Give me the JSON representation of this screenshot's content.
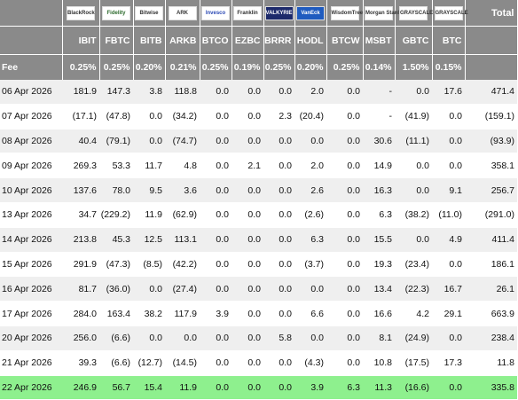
{
  "logos": [
    {
      "name": "blackrock",
      "text": "BlackRock"
    },
    {
      "name": "fidelity",
      "text": "Fidelity"
    },
    {
      "name": "bitwise",
      "text": "Bitwise"
    },
    {
      "name": "ark",
      "text": "ARK"
    },
    {
      "name": "invesco",
      "text": "Invesco"
    },
    {
      "name": "franklin",
      "text": "Franklin"
    },
    {
      "name": "valkyrie",
      "text": "VALKYRIE"
    },
    {
      "name": "vaneck",
      "text": "VanEck"
    },
    {
      "name": "wisdomtree",
      "text": "WisdomTree"
    },
    {
      "name": "morgan-stanley",
      "text": "Morgan Stanley"
    },
    {
      "name": "grayscale",
      "text": "GRAYSCALE"
    },
    {
      "name": "grayscale-mini",
      "text": "GRAYSCALE"
    }
  ],
  "total_header": "Total",
  "tickers": [
    "IBIT",
    "FBTC",
    "BITB",
    "ARKB",
    "BTCO",
    "EZBC",
    "BRRR",
    "HODL",
    "BTCW",
    "MSBT",
    "GBTC",
    "BTC"
  ],
  "fee_label": "Fee",
  "fees": [
    "0.25%",
    "0.25%",
    "0.20%",
    "0.21%",
    "0.25%",
    "0.19%",
    "0.25%",
    "0.20%",
    "0.25%",
    "0.14%",
    "1.50%",
    "0.15%"
  ],
  "rows": [
    {
      "date": "06 Apr 2026",
      "values": [
        "181.9",
        "147.3",
        "3.8",
        "118.8",
        "0.0",
        "0.0",
        "0.0",
        "2.0",
        "0.0",
        "-",
        "0.0",
        "17.6",
        "471.4"
      ]
    },
    {
      "date": "07 Apr 2026",
      "values": [
        "(17.1)",
        "(47.8)",
        "0.0",
        "(34.2)",
        "0.0",
        "0.0",
        "2.3",
        "(20.4)",
        "0.0",
        "-",
        "(41.9)",
        "0.0",
        "(159.1)"
      ]
    },
    {
      "date": "08 Apr 2026",
      "values": [
        "40.4",
        "(79.1)",
        "0.0",
        "(74.7)",
        "0.0",
        "0.0",
        "0.0",
        "0.0",
        "0.0",
        "30.6",
        "(11.1)",
        "0.0",
        "(93.9)"
      ]
    },
    {
      "date": "09 Apr 2026",
      "values": [
        "269.3",
        "53.3",
        "11.7",
        "4.8",
        "0.0",
        "2.1",
        "0.0",
        "2.0",
        "0.0",
        "14.9",
        "0.0",
        "0.0",
        "358.1"
      ]
    },
    {
      "date": "10 Apr 2026",
      "values": [
        "137.6",
        "78.0",
        "9.5",
        "3.6",
        "0.0",
        "0.0",
        "0.0",
        "2.6",
        "0.0",
        "16.3",
        "0.0",
        "9.1",
        "256.7"
      ]
    },
    {
      "date": "13 Apr 2026",
      "values": [
        "34.7",
        "(229.2)",
        "11.9",
        "(62.9)",
        "0.0",
        "0.0",
        "0.0",
        "(2.6)",
        "0.0",
        "6.3",
        "(38.2)",
        "(11.0)",
        "(291.0)"
      ]
    },
    {
      "date": "14 Apr 2026",
      "values": [
        "213.8",
        "45.3",
        "12.5",
        "113.1",
        "0.0",
        "0.0",
        "0.0",
        "6.3",
        "0.0",
        "15.5",
        "0.0",
        "4.9",
        "411.4"
      ]
    },
    {
      "date": "15 Apr 2026",
      "values": [
        "291.9",
        "(47.3)",
        "(8.5)",
        "(42.2)",
        "0.0",
        "0.0",
        "0.0",
        "(3.7)",
        "0.0",
        "19.3",
        "(23.4)",
        "0.0",
        "186.1"
      ]
    },
    {
      "date": "16 Apr 2026",
      "values": [
        "81.7",
        "(36.0)",
        "0.0",
        "(27.4)",
        "0.0",
        "0.0",
        "0.0",
        "0.0",
        "0.0",
        "13.4",
        "(22.3)",
        "16.7",
        "26.1"
      ]
    },
    {
      "date": "17 Apr 2026",
      "values": [
        "284.0",
        "163.4",
        "38.2",
        "117.9",
        "3.9",
        "0.0",
        "0.0",
        "6.6",
        "0.0",
        "16.6",
        "4.2",
        "29.1",
        "663.9"
      ]
    },
    {
      "date": "20 Apr 2026",
      "values": [
        "256.0",
        "(6.6)",
        "0.0",
        "0.0",
        "0.0",
        "0.0",
        "5.8",
        "0.0",
        "0.0",
        "8.1",
        "(24.9)",
        "0.0",
        "238.4"
      ]
    },
    {
      "date": "21 Apr 2026",
      "values": [
        "39.3",
        "(6.6)",
        "(12.7)",
        "(14.5)",
        "0.0",
        "0.0",
        "0.0",
        "(4.3)",
        "0.0",
        "10.8",
        "(17.5)",
        "17.3",
        "11.8"
      ]
    },
    {
      "date": "22 Apr 2026",
      "values": [
        "246.9",
        "56.7",
        "15.4",
        "11.9",
        "0.0",
        "0.0",
        "0.0",
        "3.9",
        "6.3",
        "11.3",
        "(16.6)",
        "0.0",
        "335.8"
      ],
      "highlight": true
    }
  ],
  "colors": {
    "header_bg": "#8a8a8a",
    "negative": "#e01010",
    "highlight": "#8ef08e",
    "stripe": "#efefef"
  }
}
